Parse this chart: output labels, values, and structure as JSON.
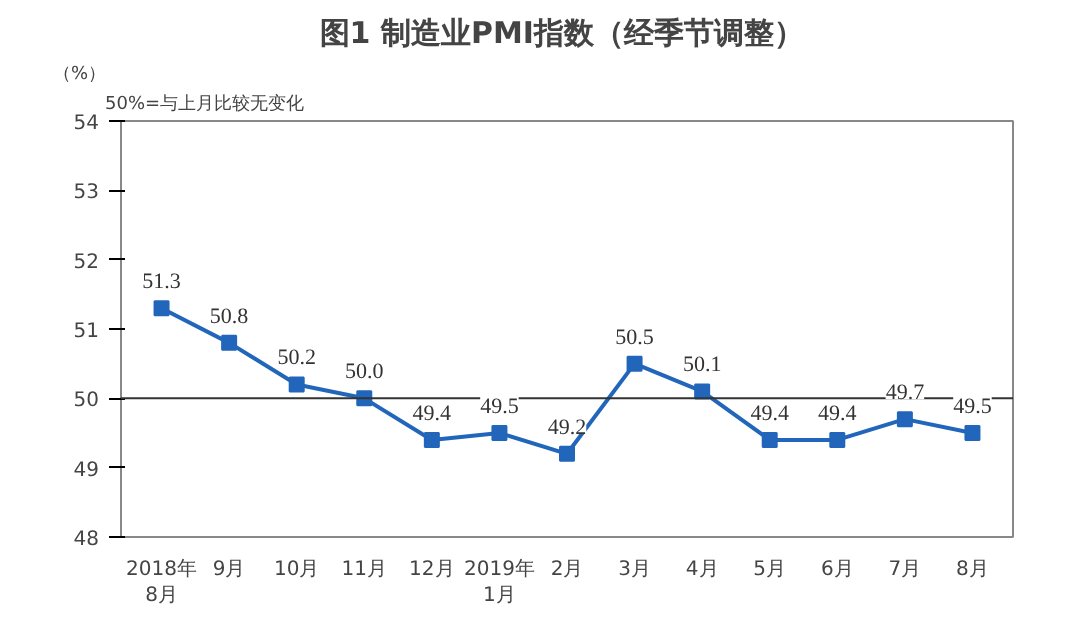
{
  "chart_data": {
    "type": "line",
    "title": "图1  制造业PMI指数（经季节调整）",
    "ylabel": "（%）",
    "annotations": [
      "50%=与上月比较无变化"
    ],
    "categories": [
      "2018年\n8月",
      "9月",
      "10月",
      "11月",
      "12月",
      "2019年\n1月",
      "2月",
      "3月",
      "4月",
      "5月",
      "6月",
      "7月",
      "8月"
    ],
    "series": [
      {
        "color": "#2266bb",
        "values": [
          51.3,
          50.8,
          50.2,
          50.0,
          49.4,
          49.5,
          49.2,
          50.5,
          50.1,
          49.4,
          49.4,
          49.7,
          49.5
        ],
        "value_labels": [
          "51.3",
          "50.8",
          "50.2",
          "50.0",
          "49.4",
          "49.5",
          "49.2",
          "50.5",
          "50.1",
          "49.4",
          "49.4",
          "49.7",
          "49.5"
        ]
      }
    ],
    "ylim": [
      48,
      54
    ],
    "yticks": [
      48,
      49,
      50,
      51,
      52,
      53,
      54
    ],
    "grid": false,
    "marker": "square",
    "line_style": "solid",
    "ref_lines": [
      {
        "axis": "y",
        "value": 50,
        "color": "#333333"
      }
    ]
  }
}
